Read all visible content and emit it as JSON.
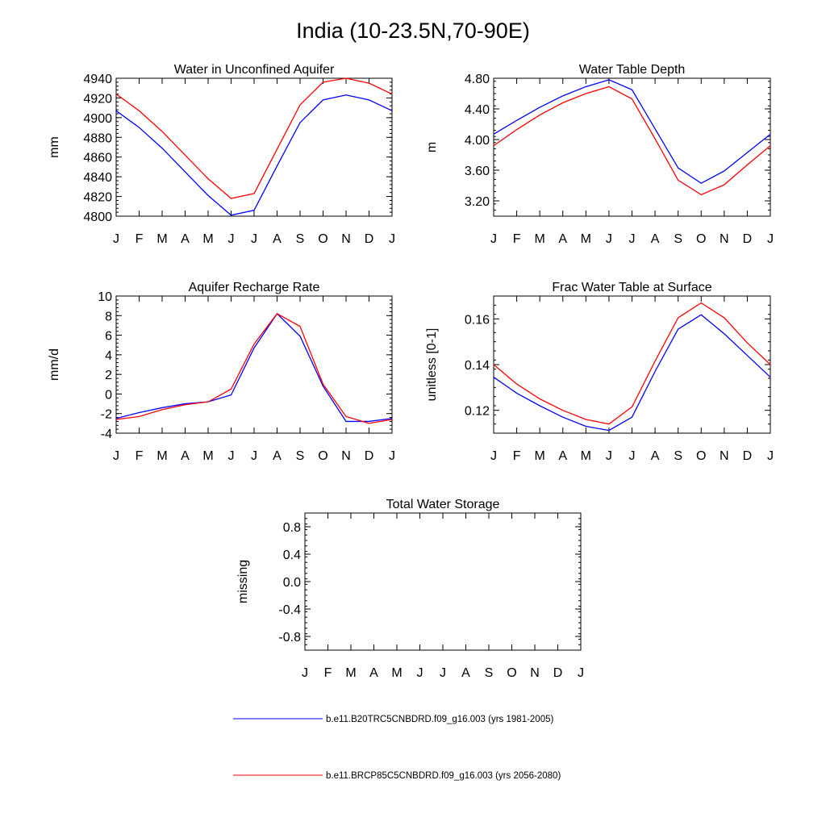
{
  "title": "India (10-23.5N,70-90E)",
  "chart_data": [
    {
      "type": "line",
      "title": "Water in Unconfined Aquifer",
      "xlabel": "",
      "ylabel": "mm",
      "categories": [
        "J",
        "F",
        "M",
        "A",
        "M",
        "J",
        "J",
        "A",
        "S",
        "O",
        "N",
        "D",
        "J"
      ],
      "ylim": [
        4800,
        4940
      ],
      "yticks": [
        4800,
        4820,
        4840,
        4860,
        4880,
        4900,
        4920,
        4940
      ],
      "ytick_labels": [
        "4800",
        "4820",
        "4840",
        "4860",
        "4880",
        "4900",
        "4920",
        "4940"
      ],
      "series": [
        {
          "name": "b.e11.B20TRC5CNBDRD.f09_g16.003 (yrs 1981-2005)",
          "color": "#0000ff",
          "values": [
            4907,
            4890,
            4869,
            4845,
            4821,
            4801,
            4806,
            4851,
            4895,
            4918,
            4923,
            4918,
            4907
          ]
        },
        {
          "name": "b.e11.BRCP85C5CNBDRD.f09_g16.003 (yrs 2056-2080)",
          "color": "#ff0000",
          "values": [
            4924,
            4907,
            4886,
            4862,
            4838,
            4818,
            4823,
            4868,
            4913,
            4936,
            4940,
            4935,
            4924
          ]
        }
      ]
    },
    {
      "type": "line",
      "title": "Water Table Depth",
      "xlabel": "",
      "ylabel": "m",
      "categories": [
        "J",
        "F",
        "M",
        "A",
        "M",
        "J",
        "J",
        "A",
        "S",
        "O",
        "N",
        "D",
        "J"
      ],
      "ylim": [
        3.0,
        4.8
      ],
      "yticks": [
        3.2,
        3.6,
        4.0,
        4.4,
        4.8
      ],
      "ytick_labels": [
        "3.20",
        "3.60",
        "4.00",
        "4.40",
        "4.80"
      ],
      "series": [
        {
          "name": "b.e11.B20TRC5CNBDRD.f09_g16.003 (yrs 1981-2005)",
          "color": "#0000ff",
          "values": [
            4.07,
            4.25,
            4.42,
            4.57,
            4.69,
            4.78,
            4.65,
            4.14,
            3.63,
            3.43,
            3.59,
            3.83,
            4.07
          ]
        },
        {
          "name": "b.e11.BRCP85C5CNBDRD.f09_g16.003 (yrs 2056-2080)",
          "color": "#ff0000",
          "values": [
            3.92,
            4.13,
            4.32,
            4.48,
            4.6,
            4.69,
            4.53,
            4.01,
            3.47,
            3.28,
            3.41,
            3.67,
            3.92
          ]
        }
      ]
    },
    {
      "type": "line",
      "title": "Aquifer Recharge Rate",
      "xlabel": "",
      "ylabel": "mm/d",
      "categories": [
        "J",
        "F",
        "M",
        "A",
        "M",
        "J",
        "J",
        "A",
        "S",
        "O",
        "N",
        "D",
        "J"
      ],
      "ylim": [
        -4,
        10
      ],
      "yticks": [
        -4,
        -2,
        0,
        2,
        4,
        6,
        8,
        10
      ],
      "ytick_labels": [
        "-4",
        "-2",
        "0",
        "2",
        "4",
        "6",
        "8",
        "10"
      ],
      "series": [
        {
          "name": "b.e11.B20TRC5CNBDRD.f09_g16.003 (yrs 1981-2005)",
          "color": "#0000ff",
          "values": [
            -2.5,
            -1.9,
            -1.4,
            -1.0,
            -0.8,
            -0.1,
            4.7,
            8.2,
            5.9,
            0.8,
            -2.8,
            -2.8,
            -2.5
          ]
        },
        {
          "name": "b.e11.BRCP85C5CNBDRD.f09_g16.003 (yrs 2056-2080)",
          "color": "#ff0000",
          "values": [
            -2.6,
            -2.3,
            -1.6,
            -1.1,
            -0.8,
            0.5,
            5.1,
            8.2,
            6.9,
            1.0,
            -2.3,
            -3.0,
            -2.6
          ]
        }
      ]
    },
    {
      "type": "line",
      "title": "Frac Water Table at Surface",
      "xlabel": "",
      "ylabel": "unitless [0-1]",
      "categories": [
        "J",
        "F",
        "M",
        "A",
        "M",
        "J",
        "J",
        "A",
        "S",
        "O",
        "N",
        "D",
        "J"
      ],
      "ylim": [
        0.11,
        0.17
      ],
      "yticks": [
        0.12,
        0.14,
        0.16
      ],
      "ytick_labels": [
        "0.12",
        "0.14",
        "0.16"
      ],
      "series": [
        {
          "name": "b.e11.B20TRC5CNBDRD.f09_g16.003 (yrs 1981-2005)",
          "color": "#0000ff",
          "values": [
            0.1345,
            0.1275,
            0.122,
            0.117,
            0.113,
            0.1112,
            0.117,
            0.137,
            0.1555,
            0.1618,
            0.1535,
            0.144,
            0.1345
          ]
        },
        {
          "name": "b.e11.BRCP85C5CNBDRD.f09_g16.003 (yrs 2056-2080)",
          "color": "#ff0000",
          "values": [
            0.14,
            0.1315,
            0.125,
            0.12,
            0.116,
            0.114,
            0.1215,
            0.1415,
            0.1605,
            0.167,
            0.1605,
            0.1495,
            0.14
          ]
        }
      ]
    },
    {
      "type": "line",
      "title": "Total Water Storage",
      "xlabel": "",
      "ylabel": "missing",
      "categories": [
        "J",
        "F",
        "M",
        "A",
        "M",
        "J",
        "J",
        "A",
        "S",
        "O",
        "N",
        "D",
        "J"
      ],
      "ylim": [
        -1.0,
        1.0
      ],
      "yticks": [
        -0.8,
        -0.4,
        0.0,
        0.4,
        0.8
      ],
      "ytick_labels": [
        "-0.8",
        "-0.4",
        "0.0",
        "0.4",
        "0.8"
      ],
      "series": []
    }
  ],
  "legend": [
    {
      "label": "b.e11.B20TRC5CNBDRD.f09_g16.003 (yrs 1981-2005)",
      "color": "#0000ff"
    },
    {
      "label": "b.e11.BRCP85C5CNBDRD.f09_g16.003 (yrs 2056-2080)",
      "color": "#ff0000"
    }
  ]
}
